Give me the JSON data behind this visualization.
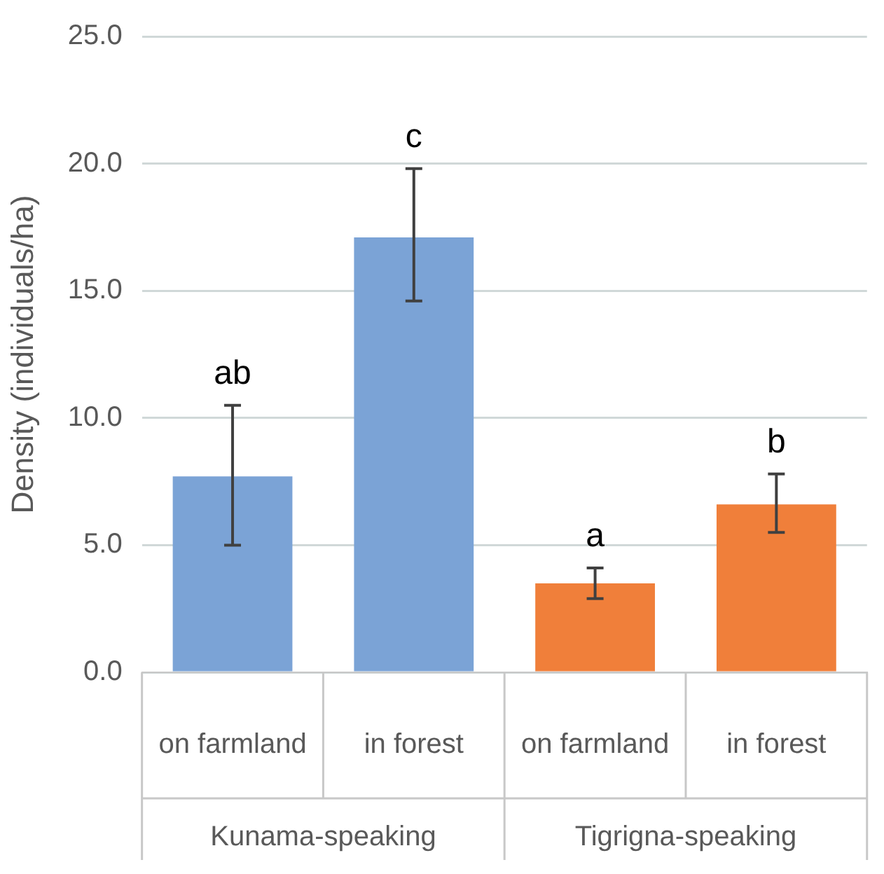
{
  "chart_data": {
    "type": "bar",
    "ylabel": "Density (individuals/ha)",
    "categories": [
      "on farmland",
      "in forest",
      "on farmland",
      "in forest"
    ],
    "values": [
      7.7,
      17.1,
      3.5,
      6.6
    ],
    "colors": [
      "#7ba3d6",
      "#7ba3d6",
      "#f07f3a",
      "#f07f3a"
    ],
    "errors": [
      [
        5.0,
        10.5
      ],
      [
        14.6,
        19.8
      ],
      [
        2.9,
        4.1
      ],
      [
        5.5,
        7.8
      ]
    ],
    "ylim": [
      0,
      25
    ],
    "yticks": [
      {
        "value": 0,
        "label": "0.0"
      },
      {
        "value": 5,
        "label": "5.0"
      },
      {
        "value": 10,
        "label": "10.0"
      },
      {
        "value": 15,
        "label": "15.0"
      },
      {
        "value": 20,
        "label": "20.0"
      },
      {
        "value": 25,
        "label": "25.0"
      }
    ],
    "grid": "y",
    "legend": false,
    "annotations": [
      {
        "text": "ab",
        "y": 10.5
      },
      {
        "text": "c",
        "y": 19.8
      },
      {
        "text": "a",
        "y": 4.1
      },
      {
        "text": "b",
        "y": 7.8
      },
      "Kunama-speaking",
      "Tigrigna-speaking"
    ]
  }
}
